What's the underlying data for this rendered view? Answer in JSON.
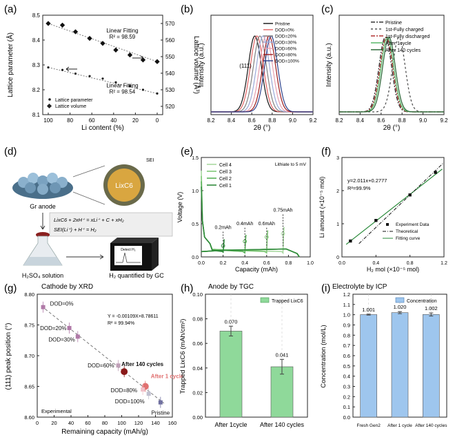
{
  "chart_data": [
    {
      "panel": "(a)",
      "type": "scatter",
      "xlabel": "Li content (%)",
      "ylabel": "Lattice parameter (Å)",
      "y2label": "Lattice volume (Å³)",
      "xlim": [
        100,
        0
      ],
      "ylim": [
        8.1,
        8.5
      ],
      "y2lim": [
        515,
        575
      ],
      "xticks": [
        100,
        80,
        60,
        40,
        20,
        0
      ],
      "yticks": [
        8.1,
        8.2,
        8.3,
        8.4,
        8.5
      ],
      "y2ticks": [
        520,
        530,
        540,
        550,
        560,
        570
      ],
      "series": [
        {
          "name": "Lattice parameter",
          "axis": "left",
          "color": "#222222",
          "x": [
            100,
            87,
            75,
            62,
            50,
            38,
            25,
            13,
            0
          ],
          "y": [
            8.29,
            8.28,
            8.265,
            8.255,
            8.245,
            8.23,
            8.215,
            8.2,
            8.185
          ]
        },
        {
          "name": "Lattice volume",
          "axis": "right",
          "color": "#222222",
          "x": [
            100,
            87,
            75,
            62,
            50,
            38,
            25,
            13,
            0
          ],
          "y": [
            570,
            569,
            565,
            561,
            558,
            554,
            551,
            548,
            547
          ]
        }
      ],
      "annotations": [
        {
          "text": "Linear Fitting",
          "x": 32,
          "y": 8.43
        },
        {
          "text": "R² = 98.59",
          "x": 32,
          "y": 8.405
        },
        {
          "text": "Linear Fitting",
          "x": 32,
          "y": 8.21
        },
        {
          "text": "R² = 98.54",
          "x": 32,
          "y": 8.185
        }
      ],
      "legend": [
        "Lattice parameter",
        "Lattice volume"
      ],
      "legend_position": "bottom-left"
    },
    {
      "panel": "(b)",
      "type": "line",
      "xlabel": "2θ (°)",
      "ylabel": "Intensity (a.u.)",
      "xlim": [
        8.2,
        9.2
      ],
      "xticks": [
        8.2,
        8.4,
        8.6,
        8.8,
        9.0,
        9.2
      ],
      "peak_label": "(111)",
      "series": [
        {
          "name": "Pristine",
          "color": "#111111",
          "center": 8.63
        },
        {
          "name": "DOD=0%",
          "color": "#e06060",
          "center": 8.65
        },
        {
          "name": "DOD=20%",
          "color": "#808080",
          "center": 8.68
        },
        {
          "name": "DOD=30%",
          "color": "#9aa8d8",
          "center": 8.71
        },
        {
          "name": "DOD=60%",
          "color": "#e6a0b0",
          "center": 8.74
        },
        {
          "name": "DOD=80%",
          "color": "#9a1a1a",
          "center": 8.77
        },
        {
          "name": "DOD=100%",
          "color": "#2a3f8a",
          "center": 8.79
        }
      ],
      "legend_position": "top-right"
    },
    {
      "panel": "(c)",
      "type": "line",
      "xlabel": "2θ (°)",
      "ylabel": "Intensity (a.u.)",
      "xlim": [
        8.2,
        9.2
      ],
      "xticks": [
        8.2,
        8.4,
        8.6,
        8.8,
        9.0,
        9.2
      ],
      "series": [
        {
          "name": "Pristine",
          "color": "#333333",
          "dash": "6 2 2 2",
          "center": 8.64
        },
        {
          "name": "1st-Fully charged",
          "color": "#555555",
          "dash": "3 3",
          "center": 8.77
        },
        {
          "name": "1st-Fully discharged",
          "color": "#b03030",
          "dash": "6 2 2 2",
          "center": 8.65
        },
        {
          "name": "After 1cycle",
          "color": "#58b868",
          "dash": "",
          "center": 8.66
        },
        {
          "name": "After 140 cycles",
          "color": "#2d6a3a",
          "dash": "",
          "center": 8.675
        }
      ],
      "legend_position": "top-right"
    },
    {
      "panel": "(e)",
      "type": "line",
      "xlabel": "Capacity (mAh)",
      "ylabel": "Voltage (V)",
      "xlim": [
        0,
        1.0
      ],
      "ylim": [
        0,
        1.5
      ],
      "xticks": [
        0.0,
        0.2,
        0.4,
        0.6,
        0.8,
        1.0
      ],
      "yticks": [
        0.0,
        0.5,
        1.0,
        1.5
      ],
      "note": "Lithiate to 5 mV",
      "series": [
        {
          "name": "Cell 4",
          "color": "#a8d8a0",
          "end": 0.75
        },
        {
          "name": "Cell 3",
          "color": "#80c878",
          "end": 0.6
        },
        {
          "name": "Cell 2",
          "color": "#58b058",
          "end": 0.4
        },
        {
          "name": "Cell 1",
          "color": "#2f8a3a",
          "end": 0.2
        }
      ],
      "annotations": [
        "0.2mAh",
        "0.4mAh",
        "0.6mAh",
        "0.75mAh"
      ],
      "legend_position": "top-left"
    },
    {
      "panel": "(f)",
      "type": "scatter",
      "xlabel": "H₂ mol (×10⁻⁵ mol)",
      "ylabel": "Li amount (×10⁻⁵ mol)",
      "xlim": [
        0,
        1.2
      ],
      "ylim": [
        0,
        3.0
      ],
      "xticks": [
        0.0,
        0.4,
        0.8,
        1.2
      ],
      "yticks": [
        0,
        1,
        2,
        3
      ],
      "equation": "y=2.011x+0.2777",
      "r2": "R²=99.9%",
      "points": {
        "x": [
          0.1,
          0.4,
          0.8,
          1.1
        ],
        "y": [
          0.48,
          1.1,
          1.87,
          2.55
        ]
      },
      "fit": {
        "slope": 2.011,
        "intercept": 0.2777,
        "color": "#2a8a3a"
      },
      "theoretical": {
        "slope": 2.0,
        "intercept": 0
      },
      "legend": [
        "Experiment Data",
        "Theoretical",
        "Fitting curve"
      ],
      "legend_position": "bottom-right"
    },
    {
      "panel": "(g)",
      "type": "scatter",
      "title": "Cathode by XRD",
      "xlabel": "Remaining capacity (mAh/g)",
      "ylabel": "(111) peak position (°)",
      "xlim": [
        0,
        160
      ],
      "ylim": [
        8.6,
        8.8
      ],
      "xticks": [
        0,
        20,
        40,
        60,
        80,
        100,
        120,
        140,
        160
      ],
      "yticks": [
        8.6,
        8.65,
        8.7,
        8.75,
        8.8
      ],
      "equation": "Y = -0.00109X+8.78611",
      "r2": "R² = 99.94%",
      "fit": {
        "slope": -0.00109,
        "intercept": 8.78611
      },
      "points": [
        {
          "label": "DOD=0%",
          "x": 7,
          "y": 8.779,
          "color": "#b07aa8"
        },
        {
          "label": "DOD=20%",
          "x": 38,
          "y": 8.745,
          "color": "#b07aa8"
        },
        {
          "label": "DOD=30%",
          "x": 48,
          "y": 8.731,
          "color": "#b07aa8"
        },
        {
          "label": "DOD=60%",
          "x": 96,
          "y": 8.684,
          "color": "#c0a0b8"
        },
        {
          "label": "After 140 cycles",
          "x": 103,
          "y": 8.674,
          "color": "#8a1a1a"
        },
        {
          "label": "After 1 cycle",
          "x": 128,
          "y": 8.65,
          "color": "#e07070"
        },
        {
          "label": "DOD=80%",
          "x": 125,
          "y": 8.645,
          "color": "#f0c0c8"
        },
        {
          "label": "DOD=100%",
          "x": 132,
          "y": 8.638,
          "color": "#c0c0d0"
        },
        {
          "label": "Pristine",
          "x": 146,
          "y": 8.624,
          "color": "#7070a0"
        }
      ],
      "corner_label": "Experimental"
    },
    {
      "panel": "(h)",
      "type": "bar",
      "title": "Anode by TGC",
      "ylabel": "Trapped LixC6 (mAh/cm²)",
      "categories": [
        "After 1cycle",
        "After 140 cycles"
      ],
      "series": [
        {
          "name": "Trapped LixC6",
          "values": [
            0.07,
            0.041
          ],
          "errors": [
            0.004,
            0.006
          ],
          "color": "#8fd99a"
        }
      ],
      "value_labels": [
        "0.070",
        "0.041"
      ],
      "ylim": [
        0,
        0.1
      ],
      "yticks": [
        0.0,
        0.02,
        0.04,
        0.06,
        0.08,
        0.1
      ],
      "legend_position": "top-right"
    },
    {
      "panel": "(i)",
      "type": "bar",
      "title": "Electrolyte by ICP",
      "ylabel": "Concentration (mol/L)",
      "categories": [
        "Fresh Gen2",
        "After 1 cycle",
        "After 140 cycles"
      ],
      "series": [
        {
          "name": "Concentration",
          "values": [
            1.001,
            1.02,
            1.002
          ],
          "errors": [
            0.005,
            0.01,
            0.015
          ],
          "color": "#9ec6ee"
        }
      ],
      "value_labels": [
        "1.001",
        "1.020",
        "1.002"
      ],
      "ylim": [
        0,
        1.2
      ],
      "yticks": [
        0.0,
        0.1,
        0.2,
        0.3,
        0.4,
        0.5,
        0.6,
        0.7,
        0.8,
        0.9,
        1.0,
        1.1,
        1.2
      ],
      "legend_position": "top-right"
    }
  ],
  "panel_d": {
    "label": "(d)",
    "sei_label": "SEI",
    "lixc6_label": "LixC6",
    "gr_anode_label": "Gr anode",
    "reaction_1": "LixC6 + 2xH⁺ = xLi⁺ + C + xH₂",
    "reaction_2": "SEI(Li⁺) + H⁺ = H₂",
    "solution_label": "H₂SO₄ solution",
    "gc_screen_label": "Detect H₂",
    "gc_label": "H₂ quantified by GC"
  }
}
